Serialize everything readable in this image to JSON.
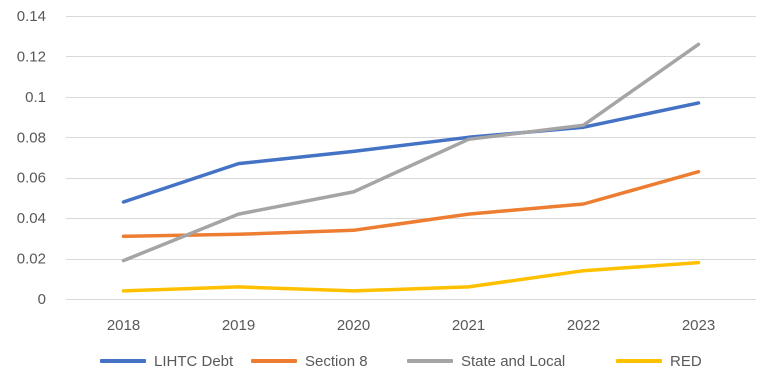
{
  "chart_data": {
    "type": "line",
    "title": "",
    "xlabel": "",
    "ylabel": "",
    "categories": [
      "2018",
      "2019",
      "2020",
      "2021",
      "2022",
      "2023"
    ],
    "ylim": [
      0,
      0.14
    ],
    "yticks": [
      0,
      0.02,
      0.04,
      0.06,
      0.08,
      0.1,
      0.12,
      0.14
    ],
    "ytick_labels": [
      "0",
      "0.02",
      "0.04",
      "0.06",
      "0.08",
      "0.1",
      "0.12",
      "0.14"
    ],
    "grid": true,
    "legend_position": "bottom",
    "series": [
      {
        "name": "LIHTC Debt",
        "color": "#4472C4",
        "values": [
          0.048,
          0.067,
          0.073,
          0.08,
          0.085,
          0.097
        ]
      },
      {
        "name": "Section 8",
        "color": "#ED7D31",
        "values": [
          0.031,
          0.032,
          0.034,
          0.042,
          0.047,
          0.063
        ]
      },
      {
        "name": "State and Local",
        "color": "#A5A5A5",
        "values": [
          0.019,
          0.042,
          0.053,
          0.079,
          0.086,
          0.126
        ]
      },
      {
        "name": "RED",
        "color": "#FFC000",
        "values": [
          0.004,
          0.006,
          0.004,
          0.006,
          0.014,
          0.018
        ]
      }
    ]
  }
}
